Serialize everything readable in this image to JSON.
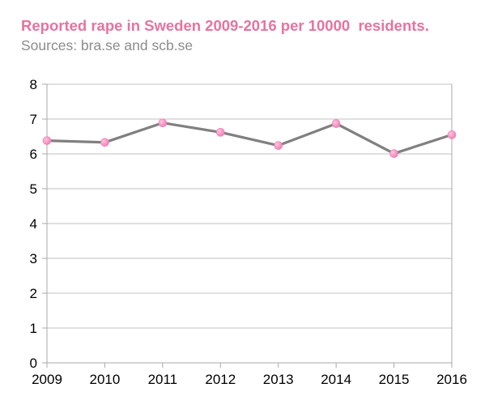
{
  "chart_data": {
    "type": "line",
    "title": "Reported rape in Sweden 2009-2016 per 10000  residents.",
    "subtitle": "Sources: bra.se and scb.se",
    "xlabel": "",
    "ylabel": "",
    "categories": [
      "2009",
      "2010",
      "2011",
      "2012",
      "2013",
      "2014",
      "2015",
      "2016"
    ],
    "series": [
      {
        "values": [
          6.38,
          6.33,
          6.89,
          6.62,
          6.24,
          6.87,
          6.01,
          6.55
        ]
      }
    ],
    "ylim": [
      0,
      8
    ],
    "yticks": [
      0,
      1,
      2,
      3,
      4,
      5,
      6,
      7,
      8
    ],
    "grid": "horizontal",
    "legend": "none",
    "colors": {
      "title": "#e8729f",
      "subtitle": "#8c8c8c",
      "line": "#808080",
      "marker": "#f07cb4",
      "marker_highlight": "#fbc6dd",
      "grid": "#c2c2c2",
      "axis": "#a8a8a8"
    }
  }
}
